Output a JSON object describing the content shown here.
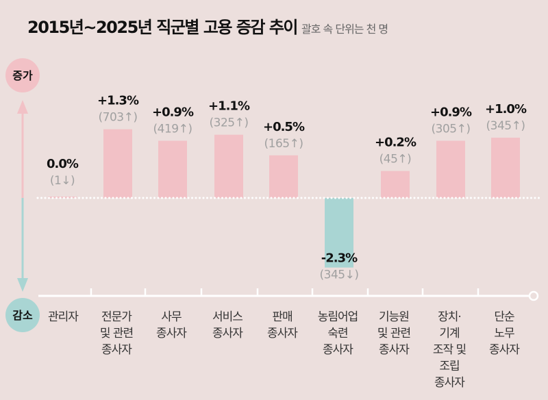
{
  "title": "2015년~2025년 직군별 고용 증감 추이",
  "subtitle": "괄호 속 단위는 천 명",
  "axis_labels": {
    "increase": "증가",
    "decrease": "감소"
  },
  "colors": {
    "background": "#ecdfdd",
    "increase": "#f2c1c6",
    "decrease": "#a9d5d3"
  },
  "chart_data": {
    "type": "bar",
    "title": "2015년~2025년 직군별 고용 증감 추이",
    "subtitle": "괄호 속 단위는 천 명",
    "categories": [
      [
        "관리자"
      ],
      [
        "전문가",
        "및 관련",
        "종사자"
      ],
      [
        "사무",
        "종사자"
      ],
      [
        "서비스",
        "종사자"
      ],
      [
        "판매",
        "종사자"
      ],
      [
        "농림어업",
        "숙련",
        "종사자"
      ],
      [
        "기능원",
        "및 관련",
        "종사자"
      ],
      [
        "장치·",
        "기계",
        "조작 및",
        "조립",
        "종사자"
      ],
      [
        "단순",
        "노무",
        "종사자"
      ]
    ],
    "values_pct": [
      0.0,
      1.3,
      0.9,
      1.1,
      0.5,
      -2.3,
      0.2,
      0.9,
      1.0
    ],
    "pct_labels": [
      "0.0%",
      "+1.3%",
      "+0.9%",
      "+1.1%",
      "+0.5%",
      "-2.3%",
      "+0.2%",
      "+0.9%",
      "+1.0%"
    ],
    "change_thousands": [
      -1,
      703,
      419,
      325,
      165,
      -345,
      45,
      305,
      345
    ],
    "count_labels": [
      "(1↓)",
      "(703↑)",
      "(419↑)",
      "(325↑)",
      "(165↑)",
      "(345↓)",
      "(45↑)",
      "(305↑)",
      "(345↑)"
    ]
  }
}
